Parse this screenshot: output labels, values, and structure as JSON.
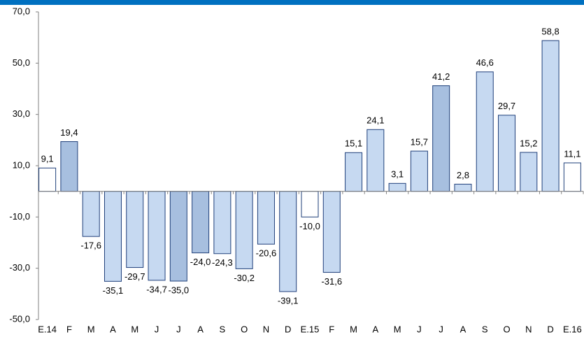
{
  "chart_data": {
    "type": "bar",
    "categories": [
      "E.14",
      "F",
      "M",
      "A",
      "M",
      "J",
      "J",
      "A",
      "S",
      "O",
      "N",
      "D",
      "E.15",
      "F",
      "M",
      "A",
      "M",
      "J",
      "J",
      "A",
      "S",
      "O",
      "N",
      "D",
      "E.16"
    ],
    "values": [
      9.1,
      19.4,
      -17.6,
      -35.1,
      -29.7,
      -34.7,
      -35.0,
      -24.0,
      -24.3,
      -30.2,
      -20.6,
      -39.1,
      -10.0,
      -31.6,
      15.1,
      24.1,
      3.1,
      15.7,
      41.2,
      2.8,
      46.6,
      29.7,
      15.2,
      58.8,
      11.1
    ],
    "value_labels": [
      "9,1",
      "19,4",
      "-17,6",
      "-35,1",
      "-29,7",
      "-34,7",
      "-35,0",
      "-24,0",
      "-24,3",
      "-30,2",
      "-20,6",
      "-39,1",
      "-10,0",
      "-31,6",
      "15,1",
      "24,1",
      "3,1",
      "15,7",
      "41,2",
      "2,8",
      "46,6",
      "29,7",
      "15,2",
      "58,8",
      "11,1"
    ],
    "colors": [
      "#ffffff",
      "#a7bfdf",
      "#c6d9f1",
      "#c6d9f1",
      "#c6d9f1",
      "#c6d9f1",
      "#a7bfdf",
      "#a7bfdf",
      "#c6d9f1",
      "#c6d9f1",
      "#c6d9f1",
      "#c6d9f1",
      "#ffffff",
      "#c6d9f1",
      "#c6d9f1",
      "#c6d9f1",
      "#c6d9f1",
      "#c6d9f1",
      "#a7bfdf",
      "#c6d9f1",
      "#c6d9f1",
      "#c6d9f1",
      "#c6d9f1",
      "#c6d9f1",
      "#ffffff"
    ],
    "ylim": [
      -50,
      70
    ],
    "yticks": [
      {
        "value": -50,
        "label": "-50,0"
      },
      {
        "value": -30,
        "label": "-30,0"
      },
      {
        "value": -10,
        "label": "-10,0"
      },
      {
        "value": 10,
        "label": "10,0"
      },
      {
        "value": 30,
        "label": "30,0"
      },
      {
        "value": 50,
        "label": "50,0"
      },
      {
        "value": 70,
        "label": "70,0"
      }
    ]
  }
}
